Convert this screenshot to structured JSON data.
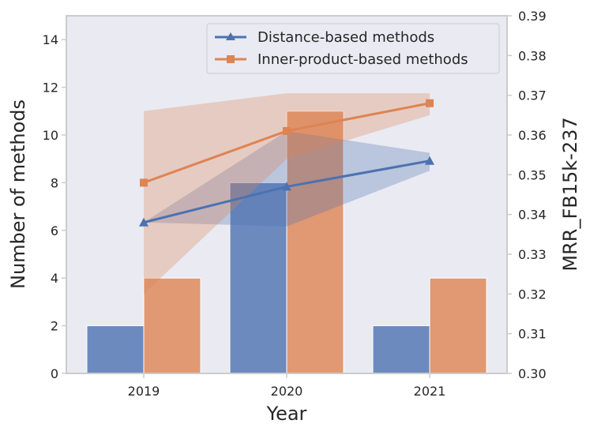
{
  "chart_data": {
    "type": "bar+line",
    "categories": [
      "2019",
      "2020",
      "2021"
    ],
    "xlabel": "Year",
    "ylabel_left": "Number of methods",
    "ylabel_right": "MRR_FB15k-237",
    "ylim_left": [
      0,
      15
    ],
    "ylim_right": [
      0.3,
      0.39
    ],
    "yticks_left": [
      "0",
      "2",
      "4",
      "6",
      "8",
      "10",
      "12",
      "14"
    ],
    "yticks_right": [
      "0.30",
      "0.31",
      "0.32",
      "0.33",
      "0.34",
      "0.35",
      "0.36",
      "0.37",
      "0.38",
      "0.39"
    ],
    "bars": [
      {
        "name": "Distance-based methods",
        "color": "#4c72b0",
        "values": [
          2,
          8,
          2
        ]
      },
      {
        "name": "Inner-product-based methods",
        "color": "#dd8452",
        "values": [
          4,
          11,
          4
        ]
      }
    ],
    "lines": [
      {
        "name": "Distance-based methods",
        "color": "#4c72b0",
        "marker": "triangle",
        "values": [
          0.338,
          0.347,
          0.3535
        ],
        "lower": [
          0.338,
          0.337,
          0.351
        ],
        "upper": [
          0.338,
          0.361,
          0.3555
        ]
      },
      {
        "name": "Inner-product-based methods",
        "color": "#dd8452",
        "marker": "square",
        "values": [
          0.348,
          0.361,
          0.368
        ],
        "lower": [
          0.32,
          0.354,
          0.365
        ],
        "upper": [
          0.366,
          0.3705,
          0.3705
        ]
      }
    ],
    "legend": {
      "position": "top-right",
      "entries": [
        "Distance-based methods",
        "Inner-product-based methods"
      ]
    },
    "grid": false
  }
}
